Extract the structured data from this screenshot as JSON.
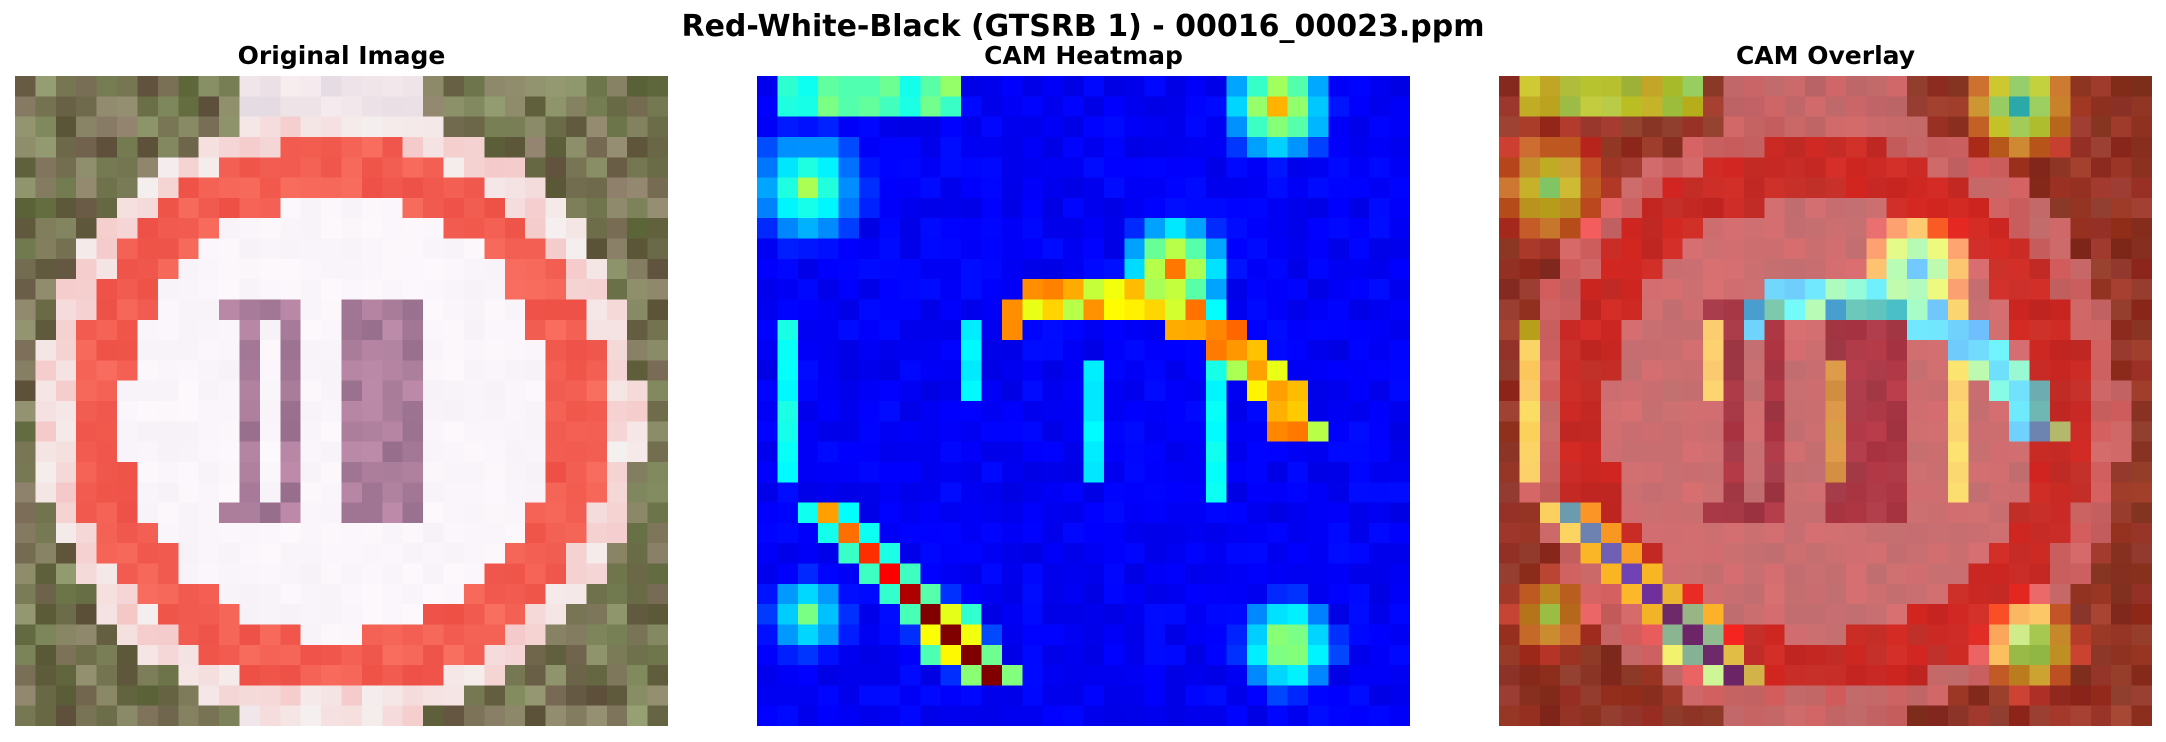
{
  "figure": {
    "title": "Red-White-Black (GTSRB 1) - 00016_00023.ppm"
  },
  "panels": [
    {
      "title": "Original Image"
    },
    {
      "title": "CAM Heatmap"
    },
    {
      "title": "CAM Overlay"
    }
  ],
  "grid_size": 32
}
